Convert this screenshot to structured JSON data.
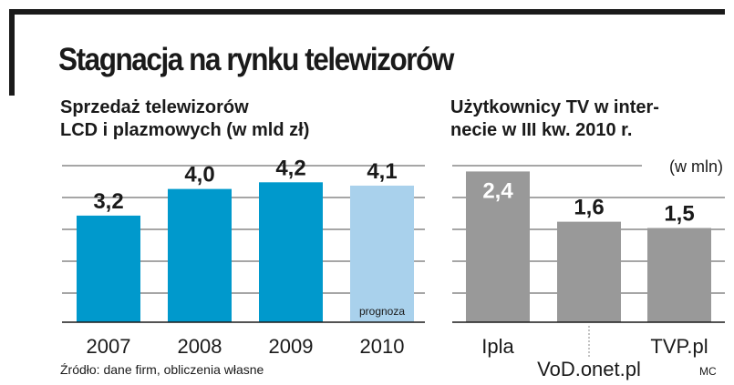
{
  "title": "Stagnacja na rynku telewizorów",
  "source": "Źródło: dane firm, obliczenia własne",
  "credit": "MC",
  "chart_data": [
    {
      "type": "bar",
      "title_lines": [
        "Sprzedaż telewizorów",
        "LCD i plazmowych (w mld zł)"
      ],
      "categories": [
        "2007",
        "2008",
        "2009",
        "2010"
      ],
      "values": [
        3.2,
        4.0,
        4.2,
        4.1
      ],
      "value_labels": [
        "3,2",
        "4,0",
        "4,2",
        "4,1"
      ],
      "bar_colors": [
        "#0099cc",
        "#0099cc",
        "#0099cc",
        "#a9d1ec"
      ],
      "bar_annotations": [
        "",
        "",
        "",
        "prognoza"
      ],
      "ylim": [
        0,
        5
      ],
      "grid": true
    },
    {
      "type": "bar",
      "title_lines": [
        "Użytkownicy TV w inter-",
        "necie w III kw. 2010 r."
      ],
      "unit": "(w mln)",
      "categories": [
        "Ipla",
        "VoD.onet.pl",
        "TVP.pl"
      ],
      "values": [
        2.4,
        1.6,
        1.5
      ],
      "value_labels": [
        "2,4",
        "1,6",
        "1,5"
      ],
      "bar_colors": [
        "#999999",
        "#999999",
        "#999999"
      ],
      "ylim": [
        0,
        2.6
      ],
      "grid": true
    }
  ]
}
